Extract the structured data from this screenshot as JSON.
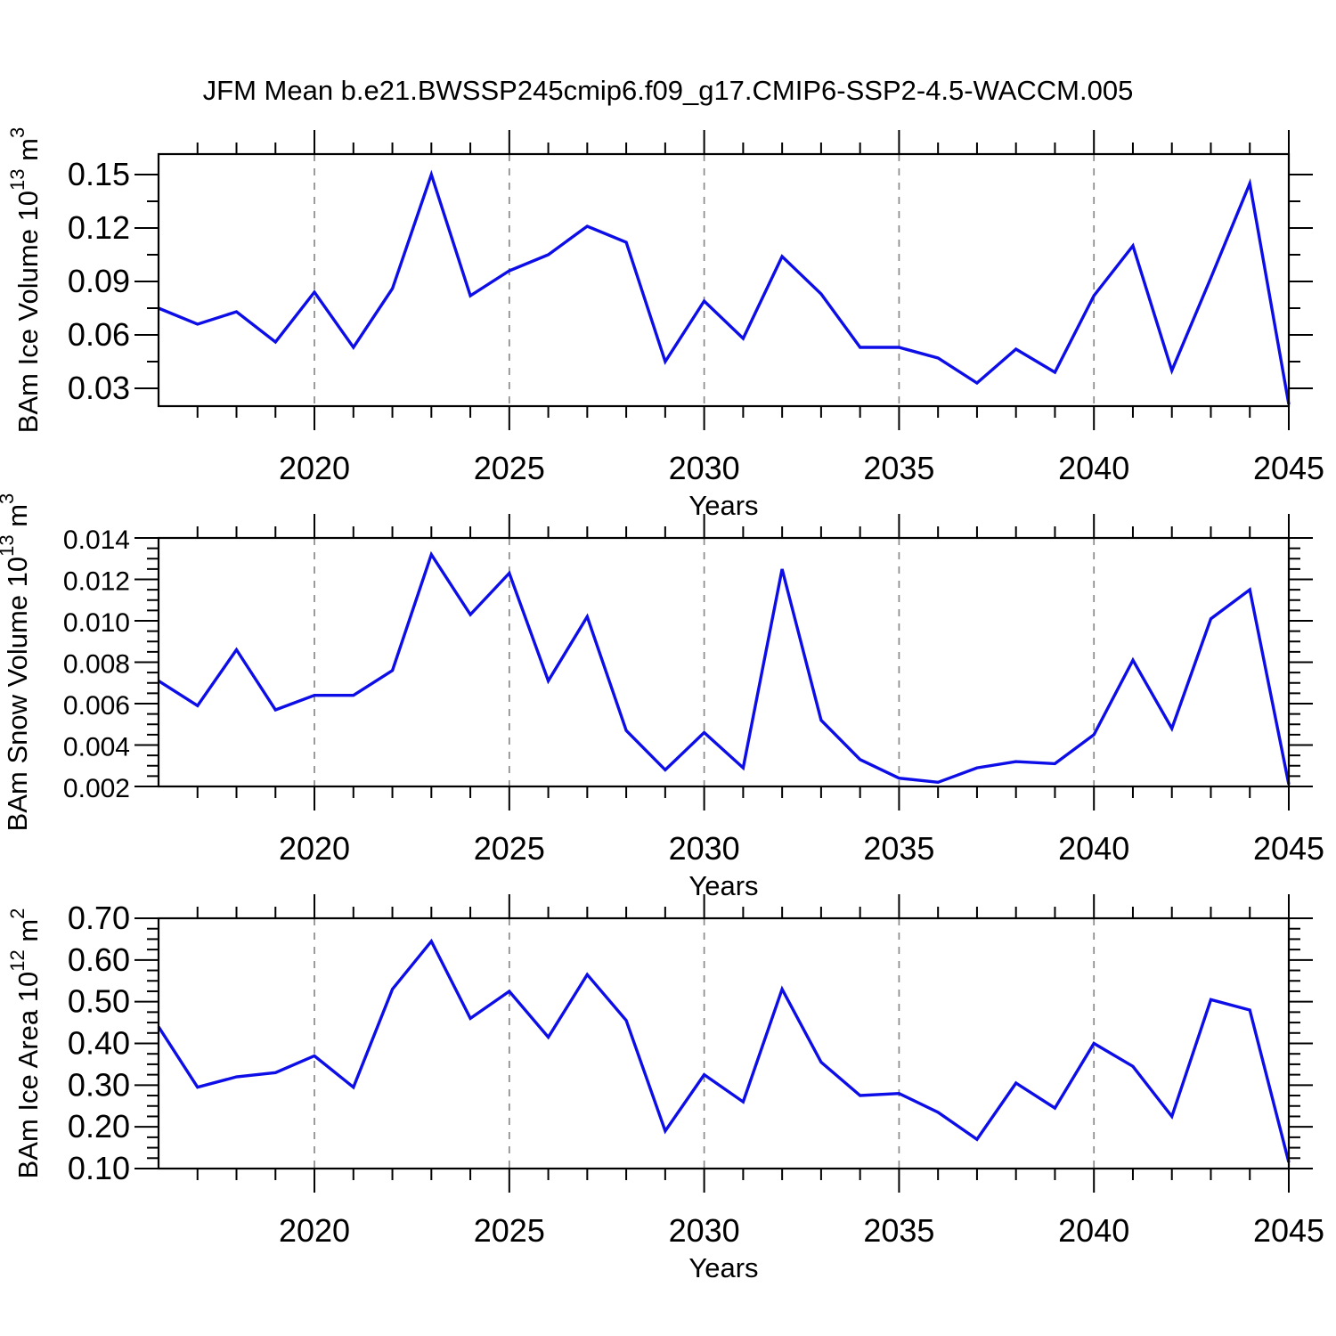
{
  "title": "JFM Mean b.e21.BWSSP245cmip6.f09_g17.CMIP6-SSP2-4.5-WACCM.005",
  "colors": {
    "line": "#0d0de8",
    "grid": "#8a8a8a",
    "axis": "#000000",
    "text": "#000000"
  },
  "x_axis": {
    "label": "Years",
    "range": [
      2016,
      2045
    ],
    "tick_years": [
      2020,
      2025,
      2030,
      2035,
      2040,
      2045
    ],
    "tick_labels": [
      "2020",
      "2025",
      "2030",
      "2035",
      "2040",
      "2045"
    ],
    "minor_step_years": 1,
    "grid_years": [
      2020,
      2025,
      2030,
      2035,
      2040
    ],
    "grid_style": "vertical dashed gray lines at 5-year marks"
  },
  "chart_data": [
    {
      "type": "line",
      "id": "ice-volume",
      "ylabel_plain": "BAm Ice Volume 10^13 m^3",
      "ylabel_parts": [
        {
          "t": "BAm Ice Volume 10"
        },
        {
          "t": "13",
          "sup": true
        },
        {
          "t": " m"
        },
        {
          "t": "3",
          "sup": true
        }
      ],
      "xlabel": "Years",
      "x": [
        2016,
        2017,
        2018,
        2019,
        2020,
        2021,
        2022,
        2023,
        2024,
        2025,
        2026,
        2027,
        2028,
        2029,
        2030,
        2031,
        2032,
        2033,
        2034,
        2035,
        2036,
        2037,
        2038,
        2039,
        2040,
        2041,
        2042,
        2043,
        2044,
        2045
      ],
      "values": [
        0.075,
        0.066,
        0.073,
        0.056,
        0.084,
        0.053,
        0.086,
        0.15,
        0.082,
        0.096,
        0.105,
        0.121,
        0.112,
        0.045,
        0.079,
        0.058,
        0.104,
        0.083,
        0.053,
        0.053,
        0.047,
        0.033,
        0.052,
        0.039,
        0.082,
        0.11,
        0.04,
        0.092,
        0.145,
        0.021
      ],
      "ylim": [
        0.02,
        0.1615
      ],
      "yticks": [
        0.03,
        0.06,
        0.09,
        0.12,
        0.15
      ],
      "ytick_labels": [
        "0.03",
        "0.06",
        "0.09",
        "0.12",
        "0.15"
      ],
      "yminor_step": 0.015,
      "legend": "none"
    },
    {
      "type": "line",
      "id": "snow-volume",
      "ylabel_plain": "BAm Snow Volume 10^13 m^3",
      "ylabel_parts": [
        {
          "t": "BAm Snow Volume 10"
        },
        {
          "t": "13",
          "sup": true
        },
        {
          "t": " m"
        },
        {
          "t": "3",
          "sup": true
        }
      ],
      "xlabel": "Years",
      "x": [
        2016,
        2017,
        2018,
        2019,
        2020,
        2021,
        2022,
        2023,
        2024,
        2025,
        2026,
        2027,
        2028,
        2029,
        2030,
        2031,
        2032,
        2033,
        2034,
        2035,
        2036,
        2037,
        2038,
        2039,
        2040,
        2041,
        2042,
        2043,
        2044,
        2045
      ],
      "values": [
        0.0071,
        0.0059,
        0.0086,
        0.0057,
        0.0064,
        0.0064,
        0.0076,
        0.0132,
        0.0103,
        0.0123,
        0.0071,
        0.0102,
        0.0047,
        0.0028,
        0.0046,
        0.0029,
        0.0125,
        0.0052,
        0.0033,
        0.0024,
        0.0022,
        0.0029,
        0.0032,
        0.0031,
        0.0045,
        0.0081,
        0.0048,
        0.0101,
        0.0115,
        0.0021
      ],
      "ylim": [
        0.002,
        0.014
      ],
      "yticks": [
        0.002,
        0.004,
        0.006,
        0.008,
        0.01,
        0.012,
        0.014
      ],
      "ytick_labels": [
        "0.002",
        "0.004",
        "0.006",
        "0.008",
        "0.010",
        "0.012",
        "0.014"
      ],
      "yminor_step": 0.0005,
      "legend": "none"
    },
    {
      "type": "line",
      "id": "ice-area",
      "ylabel_plain": "BAm Ice Area 10^12 m^2",
      "ylabel_parts": [
        {
          "t": "BAm Ice Area 10"
        },
        {
          "t": "12",
          "sup": true
        },
        {
          "t": " m"
        },
        {
          "t": "2",
          "sup": true
        }
      ],
      "xlabel": "Years",
      "x": [
        2016,
        2017,
        2018,
        2019,
        2020,
        2021,
        2022,
        2023,
        2024,
        2025,
        2026,
        2027,
        2028,
        2029,
        2030,
        2031,
        2032,
        2033,
        2034,
        2035,
        2036,
        2037,
        2038,
        2039,
        2040,
        2041,
        2042,
        2043,
        2044,
        2045
      ],
      "values": [
        0.44,
        0.295,
        0.32,
        0.33,
        0.37,
        0.295,
        0.53,
        0.645,
        0.46,
        0.525,
        0.415,
        0.565,
        0.455,
        0.19,
        0.325,
        0.26,
        0.53,
        0.355,
        0.275,
        0.28,
        0.235,
        0.17,
        0.305,
        0.245,
        0.4,
        0.345,
        0.225,
        0.505,
        0.48,
        0.115
      ],
      "ylim": [
        0.1,
        0.7
      ],
      "yticks": [
        0.1,
        0.2,
        0.3,
        0.4,
        0.5,
        0.6,
        0.7
      ],
      "ytick_labels": [
        "0.10",
        "0.20",
        "0.30",
        "0.40",
        "0.50",
        "0.60",
        "0.70"
      ],
      "yminor_step": 0.025,
      "legend": "none"
    }
  ]
}
